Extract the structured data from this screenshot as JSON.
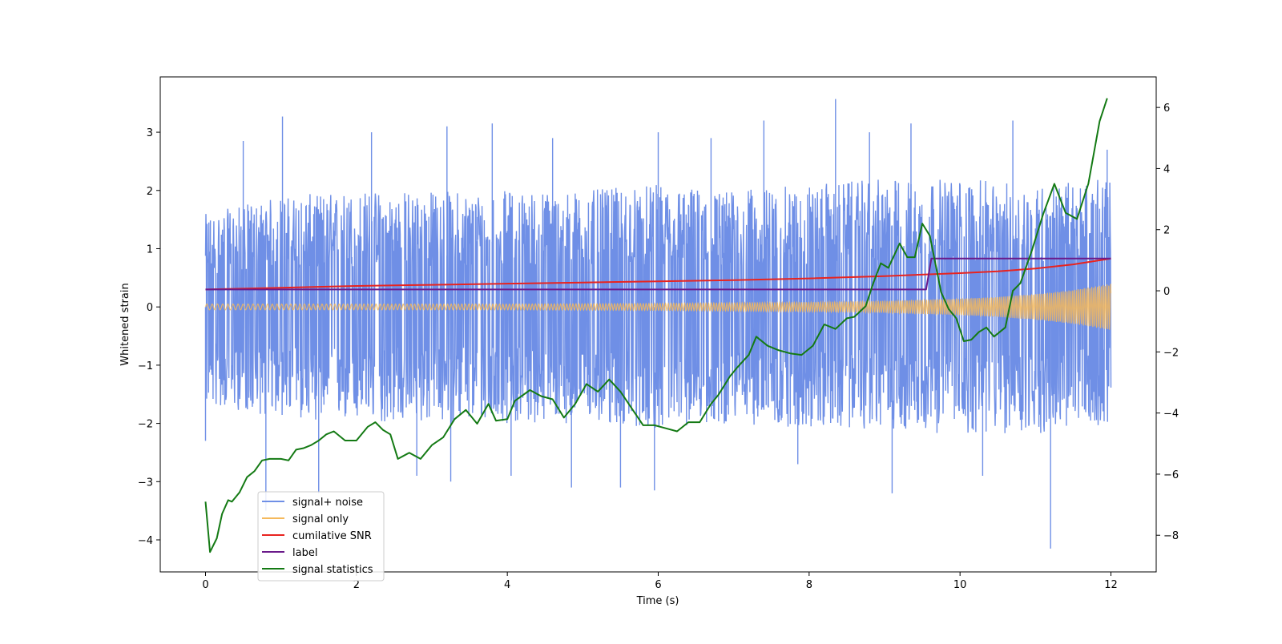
{
  "chart_data": {
    "type": "line",
    "xlabel": "Time (s)",
    "ylabel": "Whitened strain",
    "xlim": [
      -0.6,
      12.6
    ],
    "ylim": [
      -4.55,
      3.95
    ],
    "y2lim": [
      -9.2,
      7.0
    ],
    "x_ticks": [
      0,
      2,
      4,
      6,
      8,
      10,
      12
    ],
    "y_ticks": [
      3,
      2,
      1,
      0,
      -1,
      -2,
      -3,
      -4
    ],
    "y_tick_labels": [
      "3",
      "2",
      "1",
      "0",
      "−1",
      "−2",
      "−3",
      "−4"
    ],
    "y2_ticks": [
      6,
      4,
      2,
      0,
      -2,
      -4,
      -6,
      -8
    ],
    "y2_tick_labels": [
      "6",
      "4",
      "2",
      "0",
      "−2",
      "−4",
      "−6",
      "−8"
    ],
    "legend_position": "lower-left",
    "series": [
      {
        "name": "signal+ noise",
        "color": "#6f8fe6",
        "axis": "left",
        "envelope": {
          "x": [
            0,
            1,
            2,
            3,
            4,
            5,
            6,
            7,
            8,
            9,
            10,
            11,
            12
          ],
          "upper": [
            1.6,
            1.9,
            2.0,
            2.0,
            2.0,
            2.0,
            2.1,
            2.0,
            2.1,
            2.2,
            2.2,
            2.1,
            2.2
          ],
          "lower": [
            -1.7,
            -1.9,
            -2.0,
            -2.0,
            -2.0,
            -2.0,
            -2.1,
            -2.0,
            -2.1,
            -2.1,
            -2.2,
            -2.2,
            -2.0
          ]
        },
        "spikes": [
          {
            "x": 0.0,
            "y": -2.3
          },
          {
            "x": 0.5,
            "y": 2.85
          },
          {
            "x": 0.8,
            "y": -3.5
          },
          {
            "x": 1.02,
            "y": 3.27
          },
          {
            "x": 1.5,
            "y": -3.2
          },
          {
            "x": 2.2,
            "y": 3.0
          },
          {
            "x": 2.8,
            "y": -2.9
          },
          {
            "x": 3.2,
            "y": 3.1
          },
          {
            "x": 3.25,
            "y": -3.0
          },
          {
            "x": 3.8,
            "y": 3.15
          },
          {
            "x": 4.05,
            "y": -2.9
          },
          {
            "x": 4.6,
            "y": 2.9
          },
          {
            "x": 4.85,
            "y": -3.1
          },
          {
            "x": 5.5,
            "y": -3.1
          },
          {
            "x": 6.0,
            "y": 3.0
          },
          {
            "x": 5.95,
            "y": -3.15
          },
          {
            "x": 6.7,
            "y": 2.9
          },
          {
            "x": 7.4,
            "y": 3.2
          },
          {
            "x": 7.85,
            "y": -2.7
          },
          {
            "x": 8.35,
            "y": 3.57
          },
          {
            "x": 8.8,
            "y": 3.0
          },
          {
            "x": 9.1,
            "y": -3.2
          },
          {
            "x": 9.35,
            "y": 3.15
          },
          {
            "x": 10.3,
            "y": -2.9
          },
          {
            "x": 10.7,
            "y": 3.2
          },
          {
            "x": 11.2,
            "y": -4.15
          },
          {
            "x": 11.95,
            "y": 2.7
          }
        ]
      },
      {
        "name": "signal only",
        "color": "#f5b95c",
        "axis": "left",
        "amplitude": {
          "x": [
            0,
            2,
            4,
            6,
            8,
            9,
            10,
            10.5,
            11,
            11.5,
            12
          ],
          "a": [
            0.05,
            0.05,
            0.05,
            0.06,
            0.08,
            0.1,
            0.14,
            0.17,
            0.22,
            0.29,
            0.4
          ]
        }
      },
      {
        "name": "cumilative SNR",
        "color": "#e8231f",
        "axis": "left",
        "x": [
          0,
          1,
          2,
          3,
          4,
          5,
          6,
          7,
          8,
          9,
          10,
          10.5,
          11,
          11.5,
          12
        ],
        "y": [
          0.3,
          0.33,
          0.36,
          0.38,
          0.4,
          0.42,
          0.44,
          0.46,
          0.49,
          0.53,
          0.58,
          0.61,
          0.66,
          0.73,
          0.83
        ]
      },
      {
        "name": "label",
        "color": "#6a1a8a",
        "axis": "left",
        "x": [
          0,
          9.55,
          9.62,
          12
        ],
        "y": [
          0.3,
          0.3,
          0.83,
          0.83
        ]
      },
      {
        "name": "signal statistics",
        "color": "#147a14",
        "axis": "right",
        "x": [
          0,
          0.06,
          0.15,
          0.22,
          0.3,
          0.35,
          0.45,
          0.55,
          0.65,
          0.75,
          0.85,
          1.0,
          1.1,
          1.2,
          1.3,
          1.4,
          1.5,
          1.6,
          1.7,
          1.85,
          2.0,
          2.15,
          2.25,
          2.35,
          2.45,
          2.55,
          2.7,
          2.85,
          3.0,
          3.15,
          3.3,
          3.45,
          3.6,
          3.75,
          3.85,
          4.0,
          4.1,
          4.3,
          4.45,
          4.6,
          4.75,
          4.9,
          5.05,
          5.2,
          5.35,
          5.5,
          5.65,
          5.8,
          5.95,
          6.1,
          6.25,
          6.4,
          6.55,
          6.7,
          6.8,
          6.95,
          7.05,
          7.2,
          7.3,
          7.45,
          7.6,
          7.75,
          7.9,
          8.05,
          8.2,
          8.35,
          8.5,
          8.6,
          8.75,
          8.85,
          8.95,
          9.05,
          9.2,
          9.3,
          9.4,
          9.5,
          9.6,
          9.75,
          9.85,
          9.95,
          10.05,
          10.15,
          10.25,
          10.35,
          10.45,
          10.6,
          10.7,
          10.8,
          10.95,
          11.1,
          11.25,
          11.4,
          11.55,
          11.7,
          11.85,
          11.95
        ],
        "y": [
          -6.9,
          -8.55,
          -8.1,
          -7.3,
          -6.85,
          -6.9,
          -6.6,
          -6.1,
          -5.9,
          -5.55,
          -5.5,
          -5.5,
          -5.55,
          -5.2,
          -5.15,
          -5.05,
          -4.9,
          -4.7,
          -4.6,
          -4.9,
          -4.9,
          -4.45,
          -4.3,
          -4.55,
          -4.7,
          -5.5,
          -5.3,
          -5.5,
          -5.05,
          -4.8,
          -4.2,
          -3.9,
          -4.35,
          -3.7,
          -4.25,
          -4.2,
          -3.6,
          -3.25,
          -3.45,
          -3.55,
          -4.15,
          -3.7,
          -3.05,
          -3.3,
          -2.9,
          -3.3,
          -3.85,
          -4.4,
          -4.4,
          -4.5,
          -4.6,
          -4.3,
          -4.3,
          -3.7,
          -3.4,
          -2.8,
          -2.5,
          -2.1,
          -1.5,
          -1.8,
          -1.95,
          -2.05,
          -2.1,
          -1.8,
          -1.1,
          -1.25,
          -0.9,
          -0.85,
          -0.5,
          0.25,
          0.9,
          0.75,
          1.55,
          1.1,
          1.1,
          2.2,
          1.8,
          -0.05,
          -0.6,
          -0.9,
          -1.65,
          -1.6,
          -1.35,
          -1.2,
          -1.5,
          -1.2,
          0.0,
          0.25,
          1.3,
          2.5,
          3.5,
          2.55,
          2.35,
          3.5,
          5.55,
          6.3
        ]
      }
    ]
  }
}
